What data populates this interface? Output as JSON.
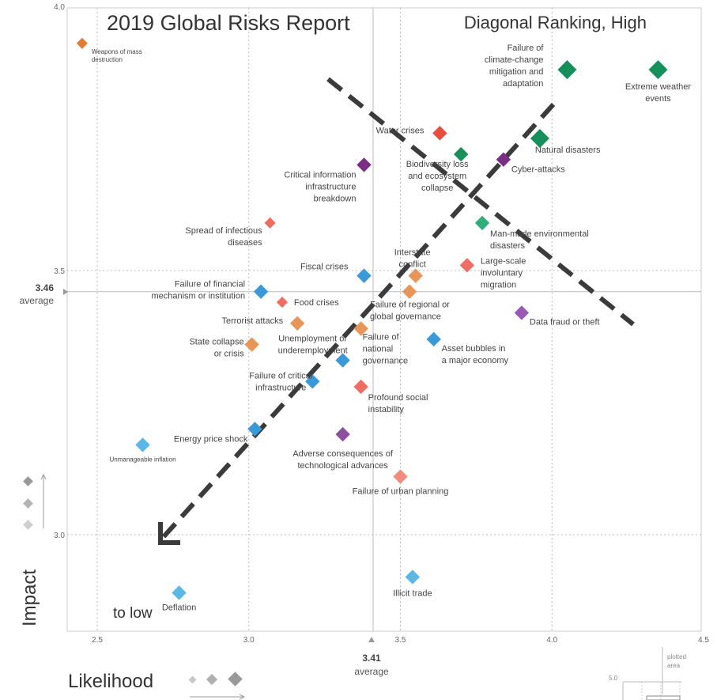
{
  "chart_data": {
    "type": "scatter",
    "title": "2019 Global Risks Report",
    "subtitle": "Diagonal Ranking, High",
    "xlabel": "Likelihood",
    "ylabel": "Impact",
    "xlim": [
      2.45,
      4.5
    ],
    "ylim": [
      2.8,
      4.0
    ],
    "x_ticks": [
      "2.5",
      "3.0",
      "3.5",
      "4.0",
      "4.5"
    ],
    "y_ticks": [
      "3.0",
      "3.5",
      "4.0"
    ],
    "x_average": {
      "value": "3.41",
      "label": "average"
    },
    "y_average": {
      "value": "3.46",
      "label": "average"
    },
    "annotation": "to low",
    "inset": {
      "value": "5.0",
      "label": "plotted area"
    },
    "grid": true,
    "colors": {
      "environmental": "#16905a",
      "environmental_light": "#2fae7a",
      "economic": "#3a9ad9",
      "economic_light": "#5bb8e6",
      "geopolitical": "#e8955a",
      "geopolitical_dark": "#e07b39",
      "societal": "#e84c3d",
      "societal_light": "#ee6e63",
      "societal_pale": "#f08c80",
      "technological": "#7b2d86",
      "technological_light": "#8e4f9e",
      "technological_violet": "#9b59b6",
      "arrow": "#3b3b3b"
    },
    "points": [
      {
        "name": "Extreme weather events",
        "x": 4.35,
        "y": 3.88,
        "size": "lg",
        "color": "#16905a"
      },
      {
        "name": "Failure of climate-change mitigation and adaptation",
        "x": 4.05,
        "y": 3.88,
        "size": "lg",
        "color": "#16905a"
      },
      {
        "name": "Natural disasters",
        "x": 3.96,
        "y": 3.75,
        "size": "lg",
        "color": "#16905a"
      },
      {
        "name": "Water crises",
        "x": 3.63,
        "y": 3.76,
        "size": "md",
        "color": "#e84c3d"
      },
      {
        "name": "Biodiversity loss and ecosystem collapse",
        "x": 3.7,
        "y": 3.72,
        "size": "md",
        "color": "#16905a"
      },
      {
        "name": "Cyber-attacks",
        "x": 3.84,
        "y": 3.71,
        "size": "md",
        "color": "#7b2d86"
      },
      {
        "name": "Critical information infrastructure breakdown",
        "x": 3.38,
        "y": 3.7,
        "size": "md",
        "color": "#7b2d86"
      },
      {
        "name": "Man-made environmental disasters",
        "x": 3.77,
        "y": 3.59,
        "size": "md",
        "color": "#2fae7a"
      },
      {
        "name": "Spread of infectious diseases",
        "x": 3.07,
        "y": 3.59,
        "size": "sm",
        "color": "#ee6e63"
      },
      {
        "name": "Large-scale involuntary migration",
        "x": 3.72,
        "y": 3.51,
        "size": "md",
        "color": "#ee6e63"
      },
      {
        "name": "Interstate conflict",
        "x": 3.55,
        "y": 3.49,
        "size": "md",
        "color": "#e8955a"
      },
      {
        "name": "Fiscal crises",
        "x": 3.38,
        "y": 3.49,
        "size": "md",
        "color": "#3a9ad9"
      },
      {
        "name": "Failure of regional or global governance",
        "x": 3.53,
        "y": 3.46,
        "size": "md",
        "color": "#e8955a"
      },
      {
        "name": "Failure of financial mechanism or institution",
        "x": 3.04,
        "y": 3.46,
        "size": "md",
        "color": "#3a9ad9"
      },
      {
        "name": "Food crises",
        "x": 3.11,
        "y": 3.44,
        "size": "sm",
        "color": "#ee6e63"
      },
      {
        "name": "Data fraud or theft",
        "x": 3.9,
        "y": 3.42,
        "size": "md",
        "color": "#9b59b6"
      },
      {
        "name": "Terrorist attacks",
        "x": 3.16,
        "y": 3.4,
        "size": "md",
        "color": "#e8955a"
      },
      {
        "name": "Failure of national governance",
        "x": 3.37,
        "y": 3.39,
        "size": "md",
        "color": "#e8955a"
      },
      {
        "name": "Asset bubbles in a major economy",
        "x": 3.61,
        "y": 3.37,
        "size": "md",
        "color": "#3a9ad9"
      },
      {
        "name": "State collapse or crisis",
        "x": 3.01,
        "y": 3.36,
        "size": "md",
        "color": "#e8955a"
      },
      {
        "name": "Unemployment or underemployment",
        "x": 3.31,
        "y": 3.33,
        "size": "md",
        "color": "#3a9ad9"
      },
      {
        "name": "Failure of critical infrastructure",
        "x": 3.21,
        "y": 3.29,
        "size": "md",
        "color": "#3a9ad9"
      },
      {
        "name": "Profound social instability",
        "x": 3.37,
        "y": 3.28,
        "size": "md",
        "color": "#ee6e63"
      },
      {
        "name": "Energy price shock",
        "x": 3.02,
        "y": 3.2,
        "size": "md",
        "color": "#3a9ad9"
      },
      {
        "name": "Adverse consequences of technological advances",
        "x": 3.31,
        "y": 3.19,
        "size": "md",
        "color": "#8e4f9e"
      },
      {
        "name": "Unmanageable inflation",
        "x": 2.65,
        "y": 3.17,
        "size": "md",
        "color": "#5bb8e6"
      },
      {
        "name": "Failure of urban planning",
        "x": 3.5,
        "y": 3.11,
        "size": "md",
        "color": "#f08c80"
      },
      {
        "name": "Weapons of mass destruction",
        "x": 2.45,
        "y": 3.93,
        "size": "sm",
        "color": "#e07b39"
      },
      {
        "name": "Illicit trade",
        "x": 3.54,
        "y": 2.92,
        "size": "md",
        "color": "#5bb8e6"
      },
      {
        "name": "Deflation",
        "x": 2.77,
        "y": 2.89,
        "size": "md",
        "color": "#5bb8e6"
      }
    ],
    "labels": [
      {
        "lines": [
          "Extreme weather",
          "events"
        ],
        "anchor": "middle",
        "small": false
      },
      {
        "lines": [
          "Failure of",
          "climate-change",
          "mitigation and",
          "adaptation"
        ],
        "anchor": "end",
        "small": false
      },
      {
        "lines": [
          "Natural disasters"
        ],
        "anchor": "start",
        "small": false
      },
      {
        "lines": [
          "Water crises"
        ],
        "anchor": "end",
        "small": false
      },
      {
        "lines": [
          "Biodiversity loss",
          "and ecosystem",
          "collapse"
        ],
        "anchor": "middle",
        "small": false
      },
      {
        "lines": [
          "Cyber-attacks"
        ],
        "anchor": "start",
        "small": false
      },
      {
        "lines": [
          "Critical information",
          "infrastructure",
          "breakdown"
        ],
        "anchor": "end",
        "small": false
      },
      {
        "lines": [
          "Man-made environmental",
          "disasters"
        ],
        "anchor": "start",
        "small": false
      },
      {
        "lines": [
          "Spread of infectious",
          "diseases"
        ],
        "anchor": "end",
        "small": false
      },
      {
        "lines": [
          "Large-scale",
          "involuntary",
          "migration"
        ],
        "anchor": "start",
        "small": false
      },
      {
        "lines": [
          "Interstate",
          "conflict"
        ],
        "anchor": "middle",
        "small": false
      },
      {
        "lines": [
          "Fiscal crises"
        ],
        "anchor": "end",
        "small": false
      },
      {
        "lines": [
          "Failure of regional or",
          "global governance"
        ],
        "anchor": "start",
        "small": false
      },
      {
        "lines": [
          "Failure of financial",
          "mechanism or institution"
        ],
        "anchor": "end",
        "small": false
      },
      {
        "lines": [
          "Food crises"
        ],
        "anchor": "start",
        "small": false
      },
      {
        "lines": [
          "Data fraud or theft"
        ],
        "anchor": "start",
        "small": false
      },
      {
        "lines": [
          "Terrorist attacks"
        ],
        "anchor": "end",
        "small": false
      },
      {
        "lines": [
          "Failure of",
          "national",
          "governance"
        ],
        "anchor": "start",
        "small": false
      },
      {
        "lines": [
          "Asset bubbles in",
          "a major economy"
        ],
        "anchor": "start",
        "small": false
      },
      {
        "lines": [
          "State collapse",
          "or crisis"
        ],
        "anchor": "end",
        "small": false
      },
      {
        "lines": [
          "Unemployment or",
          "underemployment"
        ],
        "anchor": "middle",
        "small": false
      },
      {
        "lines": [
          "Failure of critical",
          "infrastructure"
        ],
        "anchor": "middle",
        "small": false
      },
      {
        "lines": [
          "Profound social",
          "instability"
        ],
        "anchor": "start",
        "small": false
      },
      {
        "lines": [
          "Energy price shock"
        ],
        "anchor": "end",
        "small": false
      },
      {
        "lines": [
          "Adverse consequences of",
          "technological advances"
        ],
        "anchor": "middle",
        "small": false
      },
      {
        "lines": [
          "Unmanageable inflation"
        ],
        "anchor": "middle",
        "small": true
      },
      {
        "lines": [
          "Failure of urban planning"
        ],
        "anchor": "middle",
        "small": false
      },
      {
        "lines": [
          "Weapons of mass",
          "destruction"
        ],
        "anchor": "start",
        "small": true
      },
      {
        "lines": [
          "Illicit trade"
        ],
        "anchor": "middle",
        "small": false
      },
      {
        "lines": [
          "Deflation"
        ],
        "anchor": "middle",
        "small": false
      }
    ]
  }
}
